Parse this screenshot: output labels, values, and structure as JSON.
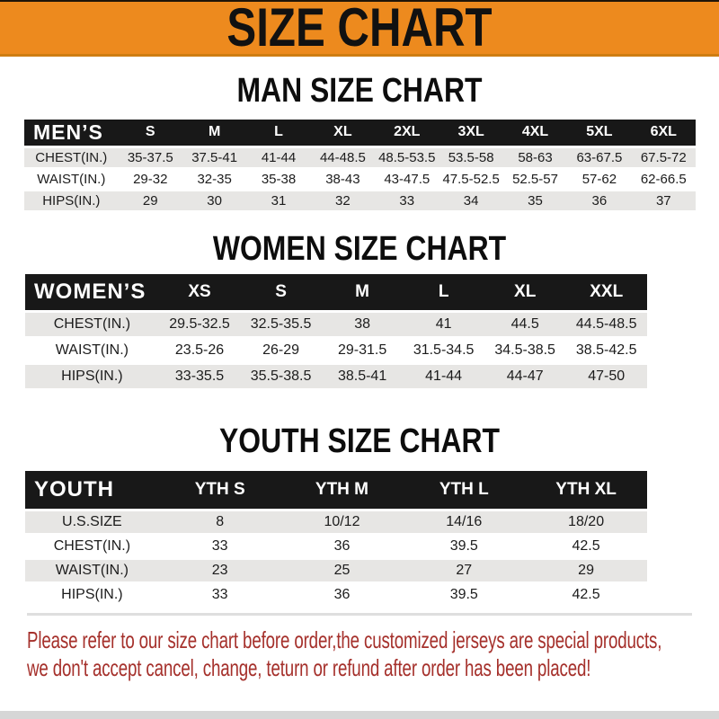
{
  "banner": {
    "title": "SIZE CHART"
  },
  "sections": [
    {
      "title": "MAN SIZE CHART",
      "table": {
        "label": "MEN’S",
        "columns": [
          "S",
          "M",
          "L",
          "XL",
          "2XL",
          "3XL",
          "4XL",
          "5XL",
          "6XL"
        ],
        "rows": [
          {
            "label": "CHEST(IN.)",
            "values": [
              "35-37.5",
              "37.5-41",
              "41-44",
              "44-48.5",
              "48.5-53.5",
              "53.5-58",
              "58-63",
              "63-67.5",
              "67.5-72"
            ]
          },
          {
            "label": "WAIST(IN.)",
            "values": [
              "29-32",
              "32-35",
              "35-38",
              "38-43",
              "43-47.5",
              "47.5-52.5",
              "52.5-57",
              "57-62",
              "62-66.5"
            ]
          },
          {
            "label": "HIPS(IN.)",
            "values": [
              "29",
              "30",
              "31",
              "32",
              "33",
              "34",
              "35",
              "36",
              "37"
            ]
          }
        ]
      }
    },
    {
      "title": "WOMEN SIZE CHART",
      "table": {
        "label": "WOMEN’S",
        "columns": [
          "XS",
          "S",
          "M",
          "L",
          "XL",
          "XXL"
        ],
        "rows": [
          {
            "label": "CHEST(IN.)",
            "values": [
              "29.5-32.5",
              "32.5-35.5",
              "38",
              "41",
              "44.5",
              "44.5-48.5"
            ]
          },
          {
            "label": "WAIST(IN.)",
            "values": [
              "23.5-26",
              "26-29",
              "29-31.5",
              "31.5-34.5",
              "34.5-38.5",
              "38.5-42.5"
            ]
          },
          {
            "label": "HIPS(IN.)",
            "values": [
              "33-35.5",
              "35.5-38.5",
              "38.5-41",
              "41-44",
              "44-47",
              "47-50"
            ]
          }
        ]
      }
    },
    {
      "title": "YOUTH SIZE CHART",
      "table": {
        "label": "YOUTH",
        "columns": [
          "YTH S",
          "YTH M",
          "YTH L",
          "YTH XL"
        ],
        "rows": [
          {
            "label": "U.S.SIZE",
            "values": [
              "8",
              "10/12",
              "14/16",
              "18/20"
            ]
          },
          {
            "label": "CHEST(IN.)",
            "values": [
              "33",
              "36",
              "39.5",
              "42.5"
            ]
          },
          {
            "label": "WAIST(IN.)",
            "values": [
              "23",
              "25",
              "27",
              "29"
            ]
          },
          {
            "label": "HIPS(IN.)",
            "values": [
              "33",
              "36",
              "39.5",
              "42.5"
            ]
          }
        ]
      }
    }
  ],
  "footer": {
    "line1": "Please refer to our size chart before order,the customized jerseys are special products,",
    "line2": "we don't accept cancel, change, teturn or refund after order has been placed!"
  },
  "colors": {
    "orange": "#ED8A1E",
    "bar-black": "#181818",
    "row-gray": "#E7E6E4",
    "red": "#A5302B"
  }
}
